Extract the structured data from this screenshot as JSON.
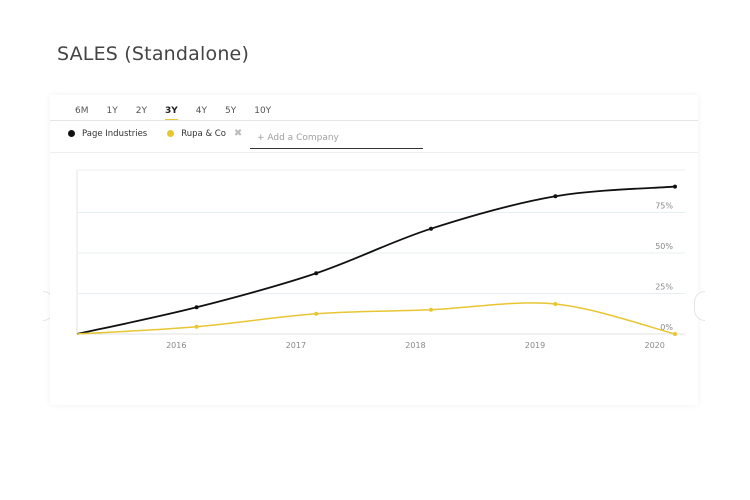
{
  "page": {
    "title": "SALES (Standalone)"
  },
  "tabs": [
    {
      "label": "6M",
      "active": false
    },
    {
      "label": "1Y",
      "active": false
    },
    {
      "label": "2Y",
      "active": false
    },
    {
      "label": "3Y",
      "active": true
    },
    {
      "label": "4Y",
      "active": false
    },
    {
      "label": "5Y",
      "active": false
    },
    {
      "label": "10Y",
      "active": false
    }
  ],
  "legend": {
    "items": [
      {
        "name": "Page Industries",
        "color": "#111111"
      },
      {
        "name": "Rupa & Co",
        "color": "#e8c531",
        "remove_icon": "close-icon"
      }
    ],
    "add_company_placeholder": "+ Add a Company"
  },
  "chart_data": {
    "type": "line",
    "x_ticks": [
      "2016",
      "2017",
      "2018",
      "2019",
      "2020"
    ],
    "y_ticks": [
      "0%",
      "25%",
      "50%",
      "75%"
    ],
    "ylim": [
      0,
      100
    ],
    "grid": true,
    "legend_position": "top-left",
    "series": [
      {
        "name": "Page Industries",
        "color": "#111111",
        "points": [
          {
            "x": 2015.17,
            "y": 0
          },
          {
            "x": 2016.17,
            "y": 16.5
          },
          {
            "x": 2017.17,
            "y": 37.5
          },
          {
            "x": 2018.13,
            "y": 65
          },
          {
            "x": 2019.17,
            "y": 85
          },
          {
            "x": 2020.17,
            "y": 91
          }
        ]
      },
      {
        "name": "Rupa & Co",
        "color": "#e8c531",
        "points": [
          {
            "x": 2015.17,
            "y": 0
          },
          {
            "x": 2016.17,
            "y": 4.5
          },
          {
            "x": 2017.17,
            "y": 12.5
          },
          {
            "x": 2018.13,
            "y": 15
          },
          {
            "x": 2019.17,
            "y": 18.5
          },
          {
            "x": 2020.17,
            "y": 0
          }
        ]
      }
    ]
  }
}
